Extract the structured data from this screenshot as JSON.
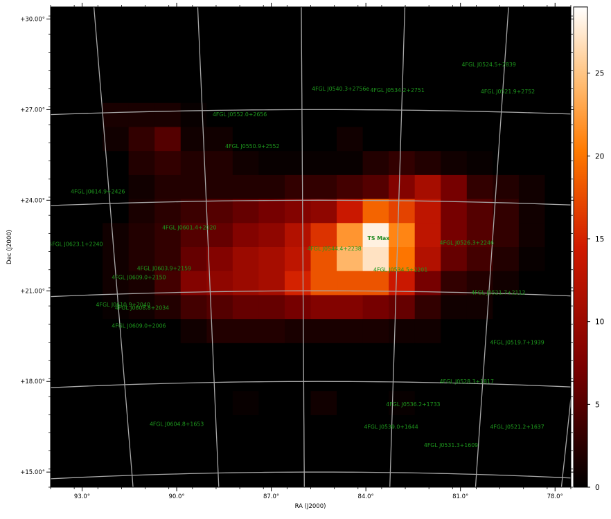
{
  "chart_data": {
    "type": "heatmap",
    "xlabel": "RA (J2000)",
    "ylabel": "Dec (J2000)",
    "xlim": [
      94.0,
      77.5
    ],
    "ylim": [
      14.5,
      30.4
    ],
    "x_ticks": [
      {
        "value": 93.0,
        "label": "93.0°"
      },
      {
        "value": 90.0,
        "label": "90.0°"
      },
      {
        "value": 87.0,
        "label": "87.0°"
      },
      {
        "value": 84.0,
        "label": "84.0°"
      },
      {
        "value": 81.0,
        "label": "81.0°"
      },
      {
        "value": 78.0,
        "label": "78.0°"
      }
    ],
    "y_ticks": [
      {
        "value": 15.0,
        "label": "+15.00°"
      },
      {
        "value": 18.0,
        "label": "+18.00°"
      },
      {
        "value": 21.0,
        "label": "+21.00°"
      },
      {
        "value": 24.0,
        "label": "+24.00°"
      },
      {
        "value": 27.0,
        "label": "+27.00°"
      },
      {
        "value": 30.0,
        "label": "+30.00°"
      }
    ],
    "colorbar": {
      "min": 0,
      "max": 29,
      "ticks": [
        0,
        5,
        10,
        15,
        20,
        25
      ],
      "colormap": [
        "#000000",
        "#7a0000",
        "#d01a00",
        "#ff7a00",
        "#ffc07a",
        "#ffffff"
      ]
    },
    "grid": {
      "shown": true,
      "color": "#a8a8a8",
      "dec_lines": [
        15,
        18,
        21,
        24,
        27
      ],
      "ra_lines": [
        92,
        89,
        86,
        83,
        80,
        77
      ]
    },
    "ts_map": {
      "cols": 20,
      "rows": 20,
      "values": [
        [
          0,
          0,
          0,
          0,
          0,
          0,
          0,
          0,
          0,
          0,
          0,
          0,
          0,
          0,
          0,
          0,
          0,
          0,
          0,
          0
        ],
        [
          0,
          0,
          0,
          0,
          0,
          0,
          0,
          0,
          0,
          0,
          0,
          0,
          0,
          0,
          0,
          0,
          0,
          0,
          0,
          0
        ],
        [
          0,
          0,
          0,
          0,
          0,
          0,
          0,
          0,
          0,
          0,
          0,
          0,
          0,
          0,
          0,
          0,
          0,
          0,
          0,
          0
        ],
        [
          0,
          0,
          0,
          0,
          0,
          0,
          0,
          0,
          0,
          0,
          0,
          0,
          0,
          0,
          0,
          0,
          0,
          0,
          0,
          0
        ],
        [
          0,
          0,
          1.5,
          1.5,
          1.5,
          0.5,
          0,
          0,
          0,
          0,
          0,
          0,
          0,
          0,
          0,
          0,
          0,
          0,
          0,
          0
        ],
        [
          0,
          0,
          1,
          3,
          5,
          1,
          1,
          0,
          0,
          0,
          0,
          1,
          0,
          0,
          0,
          0,
          0,
          0,
          0,
          0
        ],
        [
          0,
          0,
          0,
          2,
          3,
          2,
          2,
          1,
          0.5,
          0.5,
          0.5,
          0.5,
          2,
          3,
          2,
          1,
          0.5,
          0,
          0,
          0
        ],
        [
          0,
          0,
          0,
          1,
          2,
          2,
          2,
          2,
          2,
          3,
          3,
          4,
          5,
          8,
          11,
          7,
          3,
          2,
          1,
          0
        ],
        [
          0,
          0,
          0,
          1.5,
          2.5,
          3.5,
          5,
          6,
          7,
          8,
          9,
          14,
          19,
          17,
          13,
          7,
          5,
          3,
          1,
          0
        ],
        [
          0,
          0,
          1,
          2,
          3,
          5,
          6,
          8,
          9,
          12,
          16,
          22,
          28,
          21,
          13,
          7,
          5,
          3,
          1,
          0
        ],
        [
          0,
          0,
          1,
          2,
          3,
          6,
          8,
          10,
          11,
          13,
          18,
          24,
          27,
          20,
          12,
          6,
          4,
          2,
          0.5,
          0
        ],
        [
          0,
          0,
          1,
          1.5,
          4,
          8,
          9,
          10,
          11,
          15,
          18,
          18,
          18,
          14,
          7,
          3,
          2,
          1,
          0,
          0
        ],
        [
          0,
          0,
          0.5,
          1,
          2,
          4,
          5,
          6,
          6,
          7,
          8,
          8,
          7,
          6,
          3,
          1,
          1,
          0,
          0,
          0
        ],
        [
          0,
          0,
          0,
          0,
          0,
          1,
          2,
          2,
          2,
          1.5,
          1.5,
          1.5,
          1.5,
          1,
          1,
          0,
          0,
          0,
          0,
          0
        ],
        [
          0,
          0,
          0,
          0,
          0,
          0,
          0,
          0,
          0,
          0,
          0,
          0,
          0,
          0,
          0,
          0,
          0,
          0,
          0,
          0
        ],
        [
          0,
          0,
          0,
          0,
          0,
          0,
          0,
          0,
          0,
          0,
          0,
          0,
          0,
          0,
          0,
          0,
          0,
          0,
          0,
          0
        ],
        [
          0,
          0,
          0,
          0,
          0,
          0,
          0,
          0.5,
          0,
          0,
          1,
          0,
          0,
          0.5,
          0,
          0,
          0,
          0,
          0,
          0
        ],
        [
          0,
          0,
          0,
          0,
          0,
          0,
          0,
          0,
          0,
          0,
          0,
          0,
          0,
          0,
          0,
          0,
          0,
          0,
          0,
          0
        ],
        [
          0,
          0,
          0,
          0,
          0,
          0,
          0,
          0,
          0,
          0,
          0,
          0,
          0,
          0,
          0,
          0,
          0,
          0,
          0,
          0
        ],
        [
          0,
          0,
          0,
          0,
          0,
          0,
          0,
          0,
          0,
          0,
          0,
          0,
          0,
          0,
          0,
          0,
          0,
          0,
          0,
          0
        ]
      ]
    },
    "ts_max": {
      "label": "TS Max",
      "ra": 83.6,
      "dec": 22.75
    },
    "sources": [
      {
        "name": "4FGL J0524.5+2839",
        "ra": 80.1,
        "dec": 28.5
      },
      {
        "name": "4FGL J0540.3+2756e",
        "ra": 84.8,
        "dec": 27.7
      },
      {
        "name": "4FGL J0534.2+2751",
        "ra": 83.0,
        "dec": 27.65
      },
      {
        "name": "4FGL J0521.9+2752",
        "ra": 79.5,
        "dec": 27.6
      },
      {
        "name": "4FGL J0552.0+2656",
        "ra": 88.0,
        "dec": 26.85
      },
      {
        "name": "4FGL J0550.9+2552",
        "ra": 87.6,
        "dec": 25.8
      },
      {
        "name": "4FGL J0614.9+2426",
        "ra": 92.5,
        "dec": 24.3
      },
      {
        "name": "4FGL J0601.4+2020",
        "ra": 89.6,
        "dec": 23.1
      },
      {
        "name": "4FGL J0623.1+2240",
        "ra": 93.2,
        "dec": 22.55
      },
      {
        "name": "4FGL J0544.4+2238",
        "ra": 85.0,
        "dec": 22.4
      },
      {
        "name": "4FGL J0526.3+2246",
        "ra": 80.8,
        "dec": 22.6
      },
      {
        "name": "4FGL J0534.5+2201",
        "ra": 82.9,
        "dec": 21.7
      },
      {
        "name": "4FGL J0603.9+2159",
        "ra": 90.4,
        "dec": 21.75
      },
      {
        "name": "4FGL J0609.0+2150",
        "ra": 91.2,
        "dec": 21.45
      },
      {
        "name": "4FGL J0521.7+2112",
        "ra": 79.8,
        "dec": 20.95
      },
      {
        "name": "4FGL J0610.9+2040",
        "ra": 91.7,
        "dec": 20.55
      },
      {
        "name": "4FGL J0608.8+2034",
        "ra": 91.1,
        "dec": 20.45
      },
      {
        "name": "4FGL J0609.0+2006",
        "ra": 91.2,
        "dec": 19.85
      },
      {
        "name": "4FGL J0519.7+1939",
        "ra": 79.2,
        "dec": 19.3
      },
      {
        "name": "4FGL J0528.3+1817",
        "ra": 80.8,
        "dec": 18.0
      },
      {
        "name": "4FGL J0536.2+1733",
        "ra": 82.5,
        "dec": 17.25
      },
      {
        "name": "4FGL J0604.8+1653",
        "ra": 90.0,
        "dec": 16.6
      },
      {
        "name": "4FGL J0539.0+1644",
        "ra": 83.2,
        "dec": 16.5
      },
      {
        "name": "4FGL J0521.2+1637",
        "ra": 79.2,
        "dec": 16.5
      },
      {
        "name": "4FGL J0531.3+1609",
        "ra": 81.3,
        "dec": 15.9
      }
    ]
  }
}
